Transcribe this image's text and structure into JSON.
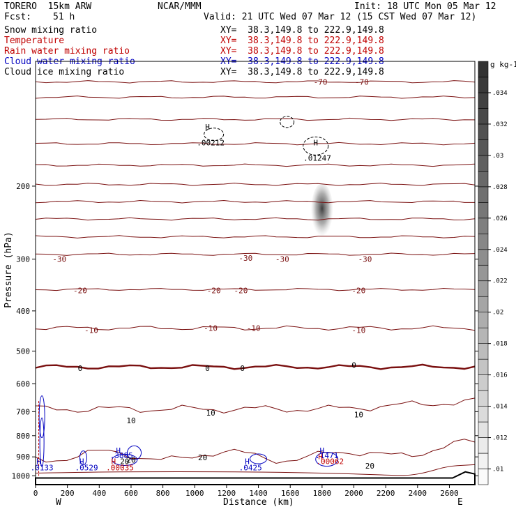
{
  "header": {
    "model": "TORERO  15km ARW",
    "org": "NCAR/MMM",
    "init": "Init: 18 UTC Mon 05 Mar 12",
    "fcst_label": "Fcst:",
    "fcst_value": "51 h",
    "valid": "Valid: 21 UTC Wed 07 Mar 12 (15 CST Wed 07 Mar 12)"
  },
  "legend": [
    {
      "name": "Snow mixing ratio",
      "xy": "XY=  38.3,149.8 to 222.9,149.8",
      "color": "#000000"
    },
    {
      "name": "Temperature",
      "xy": "XY=  38.3,149.8 to 222.9,149.8",
      "color": "#c00000"
    },
    {
      "name": "Rain water mixing ratio",
      "xy": "XY=  38.3,149.8 to 222.9,149.8",
      "color": "#c00000"
    },
    {
      "name": "Cloud water mixing ratio",
      "xy": "XY=  38.3,149.8 to 222.9,149.8",
      "color": "#0000c0"
    },
    {
      "name": "Cloud ice mixing ratio",
      "xy": "XY=  38.3,149.8 to 222.9,149.8",
      "color": "#000000"
    }
  ],
  "colors": {
    "temperature": "#7a1010",
    "cloud_water": "#0000c0",
    "rain": "#c00000",
    "ground": "#000000"
  },
  "chart_data": {
    "type": "contour",
    "xlabel": "Distance (km)",
    "ylabel": "Pressure (hPa)",
    "xlim": [
      0,
      2760
    ],
    "ylim": [
      1050,
      100
    ],
    "y_log": true,
    "x_ticks": [
      0,
      200,
      400,
      600,
      800,
      1000,
      1200,
      1400,
      1600,
      1800,
      2000,
      2200,
      2400,
      2600
    ],
    "y_ticks": [
      200,
      300,
      400,
      500,
      600,
      700,
      800,
      900,
      1000
    ],
    "y_tick_labels": [
      "200",
      "300",
      "400",
      "500",
      "600",
      "700",
      "800",
      "900",
      "1000"
    ],
    "x_end_labels": {
      "left": "W",
      "right": "E"
    },
    "colorbar": {
      "unit": "g kg-1",
      "ticks": [
        ".01",
        ".012",
        ".014",
        ".016",
        ".018",
        ".02",
        ".022",
        ".024",
        ".026",
        ".028",
        ".03",
        ".032",
        ".034"
      ],
      "min": 0.009,
      "max": 0.036
    },
    "temperature_contours": [
      {
        "p": 112,
        "label": "-70",
        "label_x": [
          1810,
          2030
        ]
      },
      {
        "p": 122,
        "label": "-70",
        "label_x": []
      },
      {
        "p": 138,
        "label": "",
        "label_x": []
      },
      {
        "p": 158,
        "label": "",
        "label_x": []
      },
      {
        "p": 178,
        "label": "",
        "label_x": []
      },
      {
        "p": 198,
        "label": "",
        "label_x": []
      },
      {
        "p": 218,
        "label": "",
        "label_x": []
      },
      {
        "p": 240,
        "label": "",
        "label_x": []
      },
      {
        "p": 265,
        "label": "",
        "label_x": []
      },
      {
        "p": 292,
        "label": "-30",
        "label_x": [
          150,
          1320,
          1550,
          2070
        ]
      },
      {
        "p": 355,
        "label": "-20",
        "label_x": [
          280,
          1120,
          1290,
          2030
        ]
      },
      {
        "p": 440,
        "label": "-10",
        "label_x": [
          350,
          1100,
          1370,
          2030
        ]
      },
      {
        "p": 546,
        "label": "0",
        "label_x": [
          280,
          1080,
          1300,
          2000
        ],
        "bold": true
      },
      {
        "p": 690,
        "label": "10",
        "label_x": [
          600,
          1100,
          2030
        ]
      },
      {
        "p": 895,
        "label": "20",
        "label_x": [
          600,
          1050,
          2100
        ]
      }
    ],
    "labels": [
      {
        "text": "-70",
        "x": 1790,
        "p": 112,
        "color": "#7a1010"
      },
      {
        "text": "-70",
        "x": 2050,
        "p": 112,
        "color": "#7a1010"
      },
      {
        "text": "-30",
        "x": 150,
        "p": 300,
        "color": "#7a1010"
      },
      {
        "text": "-30",
        "x": 1320,
        "p": 298,
        "color": "#7a1010"
      },
      {
        "text": "-30",
        "x": 1550,
        "p": 300,
        "color": "#7a1010"
      },
      {
        "text": "-30",
        "x": 2070,
        "p": 300,
        "color": "#7a1010"
      },
      {
        "text": "-20",
        "x": 280,
        "p": 357,
        "color": "#7a1010"
      },
      {
        "text": "-20",
        "x": 1120,
        "p": 357,
        "color": "#7a1010"
      },
      {
        "text": "-20",
        "x": 1290,
        "p": 357,
        "color": "#7a1010"
      },
      {
        "text": "-20",
        "x": 2030,
        "p": 357,
        "color": "#7a1010"
      },
      {
        "text": "-10",
        "x": 350,
        "p": 445,
        "color": "#7a1010"
      },
      {
        "text": "-10",
        "x": 1100,
        "p": 440,
        "color": "#7a1010"
      },
      {
        "text": "-10",
        "x": 1370,
        "p": 440,
        "color": "#7a1010"
      },
      {
        "text": "-10",
        "x": 2030,
        "p": 445,
        "color": "#7a1010"
      },
      {
        "text": "0",
        "x": 280,
        "p": 550,
        "color": "#000000"
      },
      {
        "text": "0",
        "x": 1080,
        "p": 550,
        "color": "#000000"
      },
      {
        "text": "0",
        "x": 1300,
        "p": 550,
        "color": "#000000"
      },
      {
        "text": "0",
        "x": 2000,
        "p": 540,
        "color": "#000000"
      },
      {
        "text": "10",
        "x": 600,
        "p": 735,
        "color": "#000000"
      },
      {
        "text": "10",
        "x": 1100,
        "p": 705,
        "color": "#000000"
      },
      {
        "text": "10",
        "x": 2030,
        "p": 712,
        "color": "#000000"
      },
      {
        "text": "20",
        "x": 600,
        "p": 915,
        "color": "#000000"
      },
      {
        "text": "20",
        "x": 1050,
        "p": 903,
        "color": "#000000"
      },
      {
        "text": "20",
        "x": 2100,
        "p": 945,
        "color": "#000000"
      },
      {
        "text": "20",
        "x": 560,
        "p": 922,
        "color": "#000000"
      },
      {
        "text": "H",
        "x": 1080,
        "p": 144,
        "color": "#000000"
      },
      {
        "text": ".00212",
        "x": 1100,
        "p": 157,
        "color": "#000000"
      },
      {
        "text": "H",
        "x": 1760,
        "p": 157,
        "color": "#000000"
      },
      {
        "text": ".01247",
        "x": 1770,
        "p": 171,
        "color": "#000000"
      },
      {
        "text": "H",
        "x": 20,
        "p": 922,
        "color": "#0000c0"
      },
      {
        "text": ".0133",
        "x": 40,
        "p": 955,
        "color": "#0000c0"
      },
      {
        "text": "H",
        "x": 290,
        "p": 922,
        "color": "#0000c0"
      },
      {
        "text": ".0529",
        "x": 320,
        "p": 955,
        "color": "#0000c0"
      },
      {
        "text": "H",
        "x": 520,
        "p": 868,
        "color": "#0000c0"
      },
      {
        "text": ".3885",
        "x": 540,
        "p": 893,
        "color": "#0000c0"
      },
      {
        "text": "H",
        "x": 490,
        "p": 922,
        "color": "#c00000"
      },
      {
        "text": ".00035",
        "x": 530,
        "p": 955,
        "color": "#c00000"
      },
      {
        "text": "H",
        "x": 1330,
        "p": 922,
        "color": "#0000c0"
      },
      {
        "text": ".0425",
        "x": 1350,
        "p": 955,
        "color": "#0000c0"
      },
      {
        "text": "H",
        "x": 1800,
        "p": 868,
        "color": "#0000c0"
      },
      {
        "text": ".1471",
        "x": 1830,
        "p": 893,
        "color": "#0000c0"
      },
      {
        "text": "H",
        "x": 1790,
        "p": 897,
        "color": "#c00000"
      },
      {
        "text": ".00062",
        "x": 1850,
        "p": 922,
        "color": "#c00000"
      }
    ]
  }
}
